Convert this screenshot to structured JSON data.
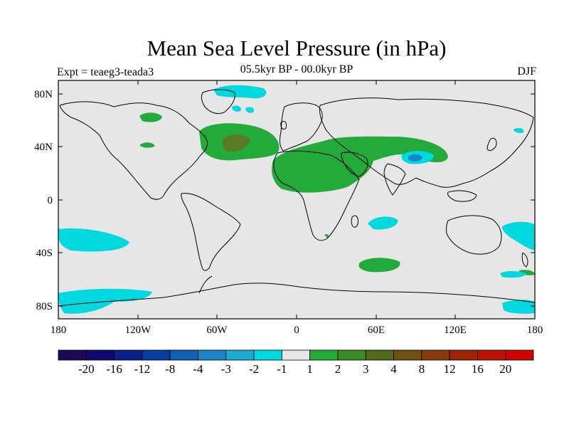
{
  "title": "Mean Sea Level Pressure (in hPa)",
  "subtitle": "05.5kyr BP - 00.0kyr BP",
  "experiment": "Expt = teaeg3-teada3",
  "season": "DJF",
  "colors": {
    "ocean_bg": "#e6e6e6",
    "neg_light": "#00d8e0",
    "neg_mid": "#1aa0d8",
    "pos_light": "#22aa3a",
    "pos_dark": "#4a7a28",
    "pos_darker": "#6e6a28"
  },
  "map": {
    "lon_range": [
      -180,
      180
    ],
    "lat_range": [
      -90,
      90
    ],
    "x_ticks": [
      "180",
      "120W",
      "60W",
      "0",
      "60E",
      "120E",
      "180"
    ],
    "y_ticks": [
      "80N",
      "40N",
      "0",
      "40S",
      "80S"
    ]
  },
  "colorbar": {
    "labels": [
      "-20",
      "-16",
      "-12",
      "-8",
      "-4",
      "-3",
      "-2",
      "-1",
      "1",
      "2",
      "3",
      "4",
      "8",
      "12",
      "16",
      "20"
    ],
    "colors": [
      "#1c0a55",
      "#120a6e",
      "#0a2088",
      "#0a3ca0",
      "#1060b4",
      "#1a84c8",
      "#1aaad6",
      "#00d8e0",
      "#e6e6e6",
      "#22aa3a",
      "#3a8a28",
      "#526a18",
      "#6e5010",
      "#883a0c",
      "#a02408",
      "#bc1008",
      "#d00000"
    ]
  }
}
